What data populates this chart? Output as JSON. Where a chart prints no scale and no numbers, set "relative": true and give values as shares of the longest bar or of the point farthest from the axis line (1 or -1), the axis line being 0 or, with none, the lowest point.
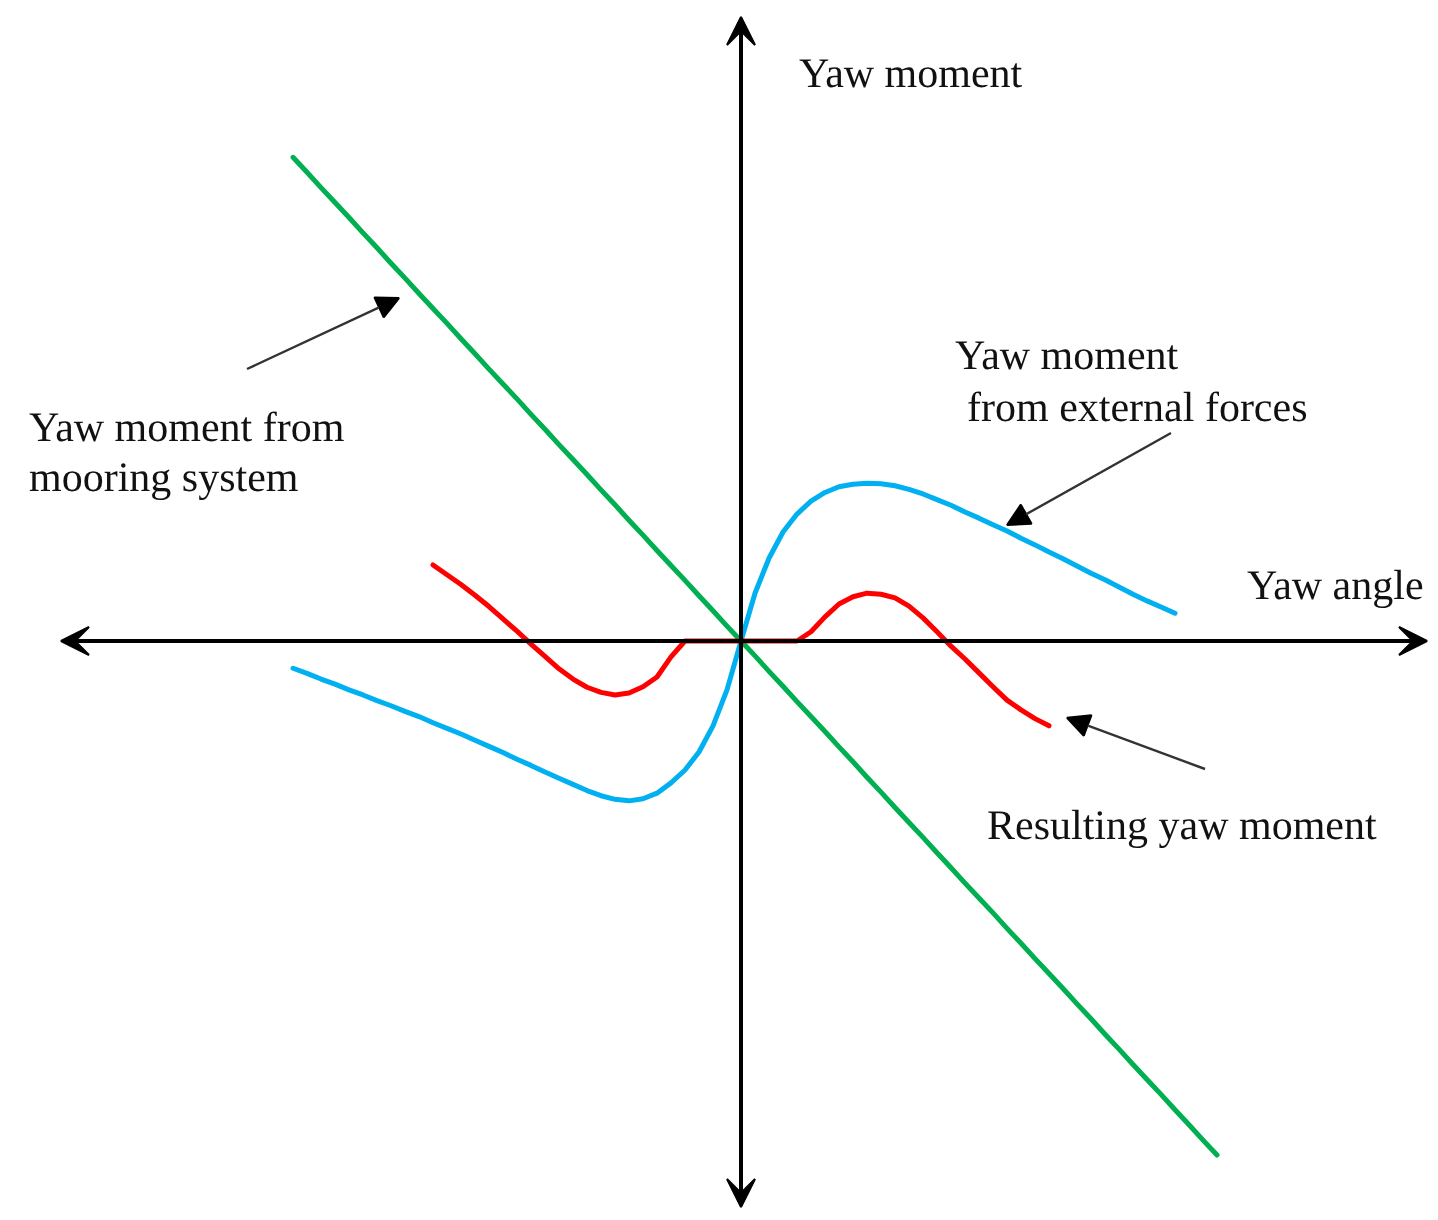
{
  "chart_data": {
    "type": "line",
    "relative": true,
    "xlabel": "Yaw angle",
    "ylabel": "Yaw moment",
    "categories": [
      null,
      null,
      null,
      null,
      null,
      null,
      null,
      null,
      null,
      null,
      null,
      null,
      null,
      null,
      null,
      null,
      null,
      null,
      null,
      null,
      null,
      null,
      null,
      null,
      null,
      null,
      null,
      null,
      null,
      null,
      null,
      null,
      null,
      null,
      null,
      null,
      null,
      null,
      null,
      null,
      null,
      null,
      null,
      null,
      null,
      null,
      null,
      null,
      null,
      null,
      null,
      null,
      null,
      null,
      null,
      null,
      null,
      null,
      null,
      null,
      null,
      null,
      null,
      null,
      null,
      null,
      null
    ],
    "series": [
      {
        "name": "Yaw moment from mooring system",
        "color": "#00b050",
        "values": [
          0.941,
          0.912,
          0.882,
          0.853,
          0.824,
          0.794,
          0.765,
          0.735,
          0.706,
          0.676,
          0.647,
          0.618,
          0.588,
          0.559,
          0.529,
          0.5,
          0.471,
          0.441,
          0.412,
          0.382,
          0.353,
          0.324,
          0.294,
          0.265,
          0.235,
          0.206,
          0.176,
          0.147,
          0.118,
          0.088,
          0.059,
          0.029,
          0,
          -0.029,
          -0.059,
          -0.088,
          -0.118,
          -0.147,
          -0.176,
          -0.206,
          -0.235,
          -0.265,
          -0.294,
          -0.324,
          -0.353,
          -0.382,
          -0.412,
          -0.441,
          -0.471,
          -0.5,
          -0.529,
          -0.559,
          -0.588,
          -0.618,
          -0.647,
          -0.676,
          -0.706,
          -0.735,
          -0.765,
          -0.794,
          -0.824,
          -0.853,
          -0.882,
          -0.912,
          -0.941,
          -0.971,
          -1.0
        ]
      },
      {
        "name": "Yaw moment from external forces",
        "color": "#00b0f0",
        "values": [
          -0.053,
          -0.063,
          -0.074,
          -0.084,
          -0.095,
          -0.105,
          -0.116,
          -0.126,
          -0.137,
          -0.147,
          -0.159,
          -0.17,
          -0.181,
          -0.193,
          -0.205,
          -0.217,
          -0.23,
          -0.242,
          -0.255,
          -0.267,
          -0.279,
          -0.291,
          -0.301,
          -0.308,
          -0.311,
          -0.307,
          -0.296,
          -0.276,
          -0.251,
          -0.216,
          -0.165,
          -0.095,
          0,
          0.093,
          0.161,
          0.212,
          0.247,
          0.272,
          0.289,
          0.3,
          0.305,
          0.307,
          0.306,
          0.302,
          0.295,
          0.286,
          0.275,
          0.264,
          0.251,
          0.239,
          0.226,
          0.214,
          0.2,
          0.187,
          0.173,
          0.16,
          0.146,
          0.132,
          0.119,
          0.105,
          0.091,
          0.078,
          0.066,
          0.054,
          null,
          null,
          null
        ]
      },
      {
        "name": "Resulting yaw moment",
        "color": "#ff0000",
        "values": [
          null,
          null,
          null,
          null,
          null,
          null,
          null,
          null,
          null,
          null,
          0.148,
          0.129,
          0.11,
          0.089,
          0.067,
          0.043,
          0.019,
          -0.006,
          -0.03,
          -0.054,
          -0.074,
          -0.09,
          -0.1,
          -0.105,
          -0.101,
          -0.089,
          -0.07,
          -0.031,
          0,
          0,
          0,
          0,
          0,
          0,
          0,
          0,
          0,
          0.018,
          0.047,
          0.072,
          0.086,
          0.093,
          0.091,
          0.084,
          0.068,
          0.045,
          0.018,
          -0.01,
          -0.035,
          -0.062,
          -0.089,
          -0.115,
          -0.134,
          -0.151,
          -0.165,
          null,
          null,
          null,
          null,
          null,
          null,
          null,
          null,
          null,
          null,
          null,
          null
        ]
      }
    ]
  }
}
